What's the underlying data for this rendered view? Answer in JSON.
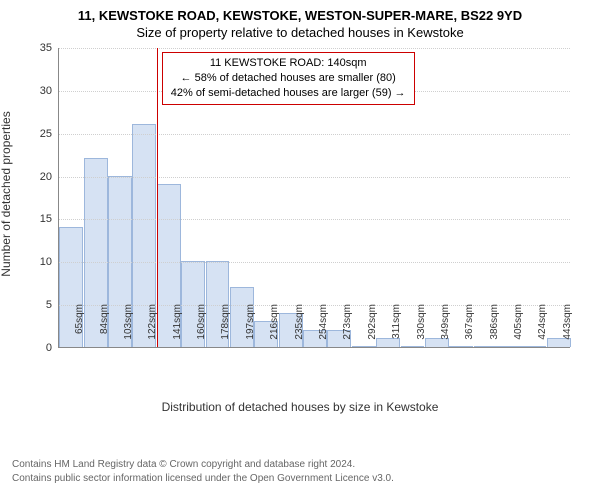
{
  "title_line1": "11, KEWSTOKE ROAD, KEWSTOKE, WESTON-SUPER-MARE, BS22 9YD",
  "title_line2": "Size of property relative to detached houses in Kewstoke",
  "ylabel": "Number of detached properties",
  "xlabel": "Distribution of detached houses by size in Kewstoke",
  "y": {
    "min": 0,
    "max": 35,
    "step": 5
  },
  "bar_color": "#d6e2f3",
  "bar_border": "#9db7dc",
  "background": "#ffffff",
  "grid_color": "#cfcfcf",
  "axis_color": "#888888",
  "xtick_labels": [
    "65sqm",
    "84sqm",
    "103sqm",
    "122sqm",
    "141sqm",
    "160sqm",
    "178sqm",
    "197sqm",
    "216sqm",
    "235sqm",
    "254sqm",
    "273sqm",
    "292sqm",
    "311sqm",
    "330sqm",
    "349sqm",
    "367sqm",
    "386sqm",
    "405sqm",
    "424sqm",
    "443sqm"
  ],
  "bar_values": [
    14,
    22,
    20,
    26,
    19,
    10,
    10,
    7,
    3,
    4,
    2,
    2,
    0,
    1,
    0,
    1,
    0,
    0,
    0,
    0,
    1
  ],
  "marker": {
    "color": "#cc0000",
    "category_index": 4,
    "position": "left",
    "box": {
      "line1": "11 KEWSTOKE ROAD: 140sqm",
      "line2": "← 58% of detached houses are smaller (80)",
      "line3": "42% of semi-detached houses are larger (59) →"
    }
  },
  "footer_line1": "Contains HM Land Registry data © Crown copyright and database right 2024.",
  "footer_line2": "Contains public sector information licensed under the Open Government Licence v3.0."
}
